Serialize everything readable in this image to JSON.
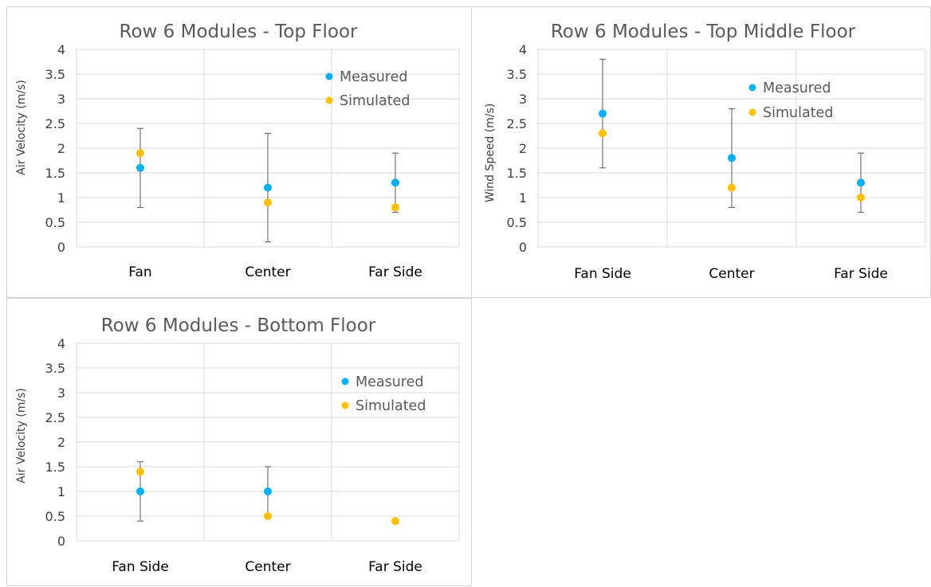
{
  "colors": {
    "measured": "#00b0f0",
    "simulated": "#ffc000"
  },
  "chart_data": [
    {
      "type": "scatter",
      "title": "Row 6 Modules - Top Floor",
      "ylabel": "Air Velocity (m/s)",
      "xlabel": "",
      "categories": [
        "Fan",
        "Center",
        "Far Side"
      ],
      "ylim": [
        0,
        4
      ],
      "yticks": [
        "0",
        "0.5",
        "1",
        "1.5",
        "2",
        "2.5",
        "3",
        "3.5",
        "4"
      ],
      "grid": true,
      "legend_position": "top-right",
      "series": [
        {
          "name": "Measured",
          "values": [
            1.6,
            1.2,
            1.3
          ],
          "error_bars": [
            [
              0.8,
              2.4
            ],
            [
              0.1,
              2.3
            ],
            [
              0.7,
              1.9
            ]
          ]
        },
        {
          "name": "Simulated",
          "values": [
            1.9,
            0.9,
            0.8
          ]
        }
      ]
    },
    {
      "type": "scatter",
      "title": "Row 6 Modules - Top Middle Floor",
      "ylabel": "Wind Speed (m/s)",
      "xlabel": "",
      "categories": [
        "Fan Side",
        "Center",
        "Far Side"
      ],
      "ylim": [
        0,
        4
      ],
      "yticks": [
        "0",
        "0.5",
        "1",
        "1.5",
        "2",
        "2.5",
        "3",
        "3.5",
        "4"
      ],
      "grid": true,
      "legend_position": "top-right",
      "series": [
        {
          "name": "Measured",
          "values": [
            2.7,
            1.8,
            1.3
          ],
          "error_bars": [
            [
              1.6,
              3.8
            ],
            [
              0.8,
              2.8
            ],
            [
              0.7,
              1.9
            ]
          ]
        },
        {
          "name": "Simulated",
          "values": [
            2.3,
            1.2,
            1.0
          ]
        }
      ]
    },
    {
      "type": "scatter",
      "title": "Row 6 Modules - Bottom Floor",
      "ylabel": "Air Velocity (m/s)",
      "xlabel": "",
      "categories": [
        "Fan Side",
        "Center",
        "Far Side"
      ],
      "ylim": [
        0,
        4
      ],
      "yticks": [
        "0",
        "0.5",
        "1",
        "1.5",
        "2",
        "2.5",
        "3",
        "3.5",
        "4"
      ],
      "grid": true,
      "legend_position": "top-right",
      "series": [
        {
          "name": "Measured",
          "values": [
            1.0,
            1.0,
            null
          ],
          "error_bars": [
            [
              0.4,
              1.6
            ],
            [
              0.5,
              1.5
            ],
            null
          ]
        },
        {
          "name": "Simulated",
          "values": [
            1.4,
            0.5,
            0.4
          ]
        }
      ]
    }
  ]
}
